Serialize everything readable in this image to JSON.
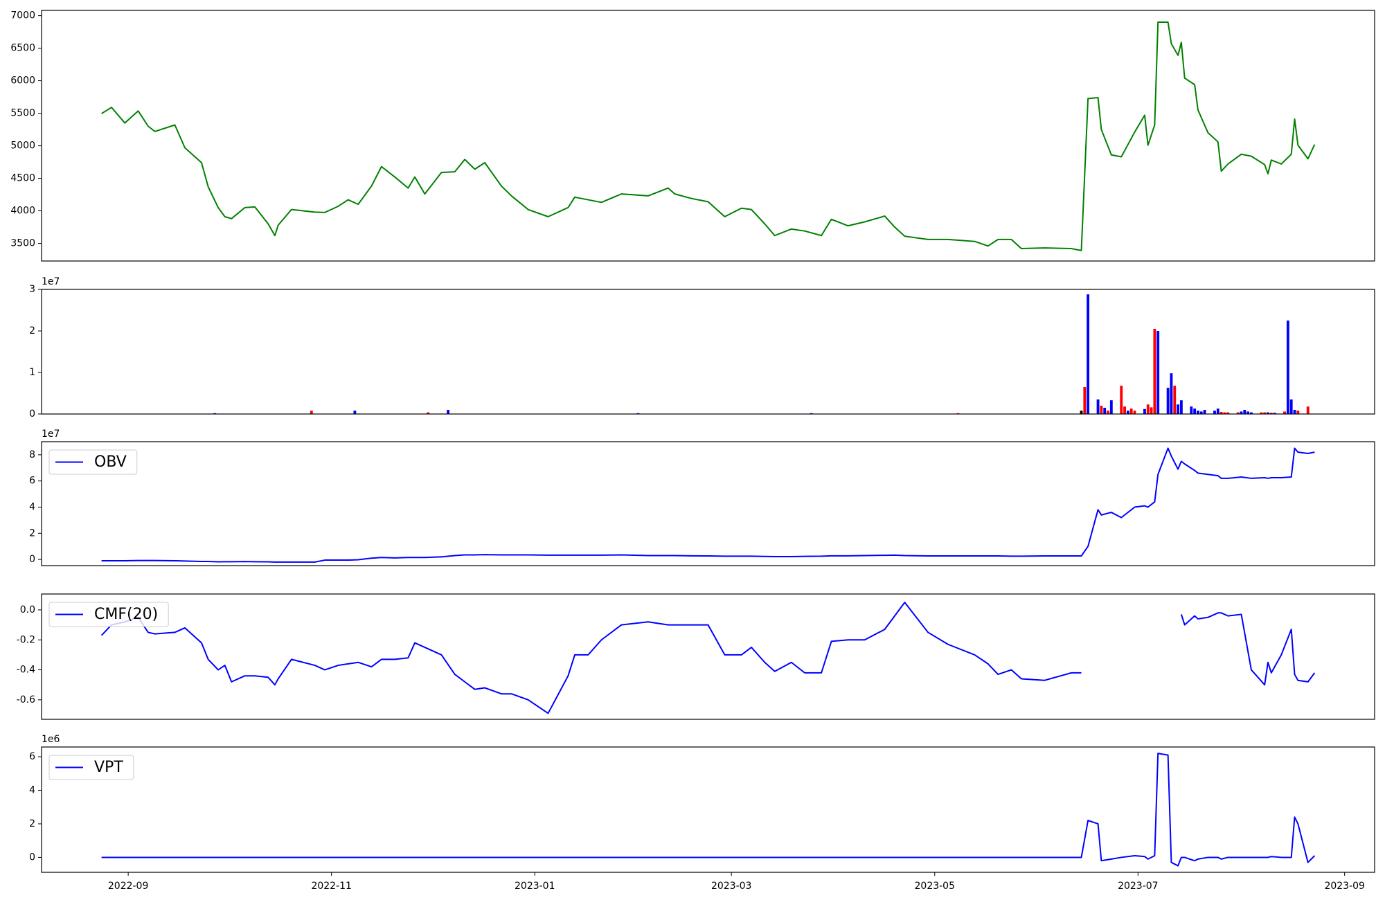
{
  "chart_data": [
    {
      "type": "line",
      "x": [
        19228,
        19231,
        19235,
        19239,
        19242,
        19244,
        19250,
        19253,
        19258,
        19260,
        19263,
        19265,
        19267,
        19271,
        19274,
        19278,
        19280,
        19281,
        19285,
        19292,
        19295,
        19299,
        19302,
        19305,
        19309,
        19312,
        19316,
        19320,
        19322,
        19325,
        19330,
        19334,
        19337,
        19340,
        19343,
        19348,
        19351,
        19356,
        19362,
        19368,
        19370,
        19374,
        19378,
        19384,
        19392,
        19398,
        19400,
        19405,
        19410,
        19415,
        19420,
        19423,
        19427,
        19430,
        19435,
        19439,
        19444,
        19447,
        19452,
        19457,
        19463,
        19466,
        19469,
        19476,
        19482,
        19490,
        19494,
        19497,
        19501,
        19504,
        19511,
        19519,
        19522,
        19524,
        19527,
        19528,
        19531,
        19534,
        19538,
        19541,
        19542,
        19544,
        19545,
        19548,
        19549,
        19551,
        19552,
        19553,
        19556,
        19557,
        19560,
        19563,
        19564,
        19566,
        19570,
        19573,
        19577,
        19578,
        19579,
        19582,
        19585,
        19586,
        19587,
        19590,
        19592
      ],
      "series": [
        {
          "color": "green",
          "values": [
            5495,
            5590,
            5350,
            5535,
            5300,
            5220,
            5320,
            4970,
            4740,
            4370,
            4050,
            3910,
            3880,
            4050,
            4060,
            3800,
            3620,
            3780,
            4020,
            3980,
            3975,
            4070,
            4170,
            4100,
            4380,
            4680,
            4520,
            4350,
            4520,
            4260,
            4590,
            4600,
            4790,
            4640,
            4740,
            4380,
            4230,
            4020,
            3910,
            4050,
            4210,
            4170,
            4130,
            4260,
            4230,
            4350,
            4260,
            4190,
            4140,
            3910,
            4040,
            4020,
            3800,
            3620,
            3720,
            3690,
            3620,
            3870,
            3770,
            3830,
            3920,
            3750,
            3610,
            3560,
            3560,
            3530,
            3460,
            3560,
            3560,
            3420,
            3430,
            3420,
            3390,
            5725,
            5740,
            5250,
            4860,
            4830,
            5210,
            5470,
            5010,
            5320,
            6900,
            6900,
            6570,
            6390,
            6590,
            6040,
            5940,
            5550,
            5200,
            5060,
            4610,
            4720,
            4870,
            4840,
            4710,
            4570,
            4780,
            4720,
            4870,
            5410,
            5010,
            4800,
            5020
          ]
        }
      ],
      "xlim": [
        19210,
        19610
      ],
      "ylim": [
        3229,
        7081
      ],
      "yticks": [
        3500,
        4000,
        4500,
        5000,
        5500,
        6000,
        6500,
        7000
      ]
    },
    {
      "type": "bar",
      "x": [
        19262,
        19291,
        19304,
        19326,
        19332,
        19389,
        19441,
        19485,
        19522,
        19523,
        19524,
        19527,
        19528,
        19529,
        19530,
        19531,
        19534,
        19535,
        19536,
        19537,
        19538,
        19541,
        19542,
        19543,
        19544,
        19545,
        19548,
        19549,
        19550,
        19551,
        19552,
        19555,
        19556,
        19557,
        19558,
        19559,
        19562,
        19563,
        19564,
        19565,
        19566,
        19569,
        19570,
        19571,
        19572,
        19573,
        19576,
        19577,
        19578,
        19579,
        19580,
        19583,
        19584,
        19585,
        19586,
        19587,
        19590
      ],
      "values": [
        0.02,
        0.08,
        0.08,
        0.04,
        0.1,
        0.02,
        0.02,
        0.02,
        0.08,
        0.65,
        2.88,
        0.35,
        0.2,
        0.15,
        0.08,
        0.33,
        0.68,
        0.18,
        0.08,
        0.13,
        0.08,
        0.12,
        0.23,
        0.16,
        2.05,
        2.0,
        0.63,
        0.98,
        0.68,
        0.23,
        0.33,
        0.18,
        0.13,
        0.08,
        0.06,
        0.1,
        0.08,
        0.13,
        0.05,
        0.04,
        0.04,
        0.04,
        0.06,
        0.1,
        0.06,
        0.04,
        0.04,
        0.04,
        0.04,
        0.03,
        0.03,
        0.06,
        2.25,
        0.35,
        0.1,
        0.08,
        0.18
      ],
      "colors": [
        "blue",
        "red",
        "blue",
        "red",
        "blue",
        "blue",
        "blue",
        "red",
        "black",
        "red",
        "blue",
        "blue",
        "red",
        "blue",
        "red",
        "blue",
        "red",
        "red",
        "blue",
        "red",
        "red",
        "blue",
        "red",
        "red",
        "red",
        "blue",
        "blue",
        "blue",
        "red",
        "blue",
        "blue",
        "blue",
        "blue",
        "blue",
        "blue",
        "blue",
        "blue",
        "blue",
        "red",
        "red",
        "red",
        "red",
        "blue",
        "blue",
        "blue",
        "blue",
        "red",
        "red",
        "blue",
        "red",
        "blue",
        "red",
        "blue",
        "blue",
        "blue",
        "red",
        "red"
      ],
      "xlim": [
        19210,
        19610
      ],
      "ylim": [
        0,
        3
      ],
      "yticks": [
        0,
        1,
        2,
        3
      ],
      "offset_label": "1e7"
    },
    {
      "type": "line",
      "x": [
        19228,
        19231,
        19235,
        19239,
        19242,
        19244,
        19250,
        19253,
        19258,
        19260,
        19263,
        19265,
        19267,
        19271,
        19274,
        19278,
        19280,
        19281,
        19285,
        19292,
        19295,
        19299,
        19302,
        19305,
        19309,
        19312,
        19316,
        19320,
        19322,
        19325,
        19330,
        19334,
        19337,
        19340,
        19343,
        19348,
        19351,
        19356,
        19362,
        19368,
        19370,
        19374,
        19378,
        19384,
        19392,
        19398,
        19400,
        19405,
        19410,
        19415,
        19420,
        19423,
        19427,
        19430,
        19435,
        19439,
        19444,
        19447,
        19452,
        19457,
        19463,
        19466,
        19469,
        19476,
        19482,
        19490,
        19494,
        19497,
        19501,
        19504,
        19511,
        19519,
        19522,
        19524,
        19527,
        19528,
        19531,
        19534,
        19538,
        19541,
        19542,
        19544,
        19545,
        19548,
        19549,
        19551,
        19552,
        19553,
        19556,
        19557,
        19560,
        19563,
        19564,
        19566,
        19570,
        19573,
        19577,
        19578,
        19579,
        19582,
        19585,
        19586,
        19587,
        19590,
        19592
      ],
      "series": [
        {
          "name": "OBV",
          "color": "blue",
          "values": [
            -0.1,
            -0.1,
            -0.1,
            -0.08,
            -0.08,
            -0.08,
            -0.1,
            -0.12,
            -0.15,
            -0.15,
            -0.18,
            -0.17,
            -0.17,
            -0.16,
            -0.17,
            -0.18,
            -0.2,
            -0.2,
            -0.2,
            -0.2,
            -0.05,
            -0.05,
            -0.05,
            -0.02,
            0.1,
            0.15,
            0.12,
            0.15,
            0.15,
            0.15,
            0.2,
            0.3,
            0.35,
            0.35,
            0.37,
            0.35,
            0.35,
            0.35,
            0.33,
            0.33,
            0.33,
            0.33,
            0.33,
            0.35,
            0.3,
            0.3,
            0.3,
            0.28,
            0.27,
            0.25,
            0.25,
            0.25,
            0.23,
            0.22,
            0.22,
            0.24,
            0.25,
            0.28,
            0.28,
            0.3,
            0.32,
            0.33,
            0.3,
            0.27,
            0.27,
            0.27,
            0.27,
            0.27,
            0.25,
            0.25,
            0.27,
            0.27,
            0.27,
            1.0,
            3.8,
            3.4,
            3.6,
            3.2,
            4.0,
            4.1,
            4.0,
            4.4,
            6.5,
            8.5,
            7.9,
            6.9,
            7.5,
            7.3,
            6.8,
            6.6,
            6.5,
            6.4,
            6.2,
            6.2,
            6.3,
            6.2,
            6.25,
            6.2,
            6.25,
            6.25,
            6.3,
            8.5,
            8.2,
            8.1,
            8.2
          ]
        }
      ],
      "xlim": [
        19210,
        19610
      ],
      "ylim": [
        -0.47,
        9.0
      ],
      "yticks": [
        0,
        2,
        4,
        6,
        8
      ],
      "offset_label": "1e7",
      "legend": "upper left"
    },
    {
      "type": "line",
      "x": [
        19228,
        19231,
        19235,
        19239,
        19242,
        19244,
        19250,
        19253,
        19258,
        19260,
        19263,
        19265,
        19267,
        19271,
        19274,
        19278,
        19280,
        19281,
        19285,
        19292,
        19295,
        19299,
        19302,
        19305,
        19309,
        19312,
        19316,
        19320,
        19322,
        19325,
        19330,
        19334,
        19337,
        19340,
        19343,
        19348,
        19351,
        19356,
        19362,
        19368,
        19370,
        19374,
        19378,
        19384,
        19392,
        19398,
        19400,
        19405,
        19410,
        19415,
        19420,
        19423,
        19427,
        19430,
        19435,
        19439,
        19444,
        19447,
        19452,
        19457,
        19463,
        19466,
        19469,
        19476,
        19482,
        19490,
        19494,
        19497,
        19501,
        19504,
        19511,
        19519,
        19522,
        19524,
        19527,
        19528,
        19531,
        19534,
        19538,
        19541,
        19542,
        19544,
        19545,
        19548,
        19549,
        19551,
        19552,
        19553,
        19556,
        19557,
        19560,
        19563,
        19564,
        19566,
        19570,
        19573,
        19577,
        19578,
        19579,
        19582,
        19585,
        19586,
        19587,
        19590,
        19592
      ],
      "series": [
        {
          "name": "CMF(20)",
          "color": "blue",
          "values": [
            -0.17,
            -0.1,
            -0.08,
            -0.05,
            -0.15,
            -0.16,
            -0.15,
            -0.12,
            -0.22,
            -0.33,
            -0.4,
            -0.37,
            -0.48,
            -0.44,
            -0.44,
            -0.45,
            -0.5,
            -0.46,
            -0.33,
            -0.37,
            -0.4,
            -0.37,
            -0.36,
            -0.35,
            -0.38,
            -0.33,
            -0.33,
            -0.32,
            -0.22,
            -0.25,
            -0.3,
            -0.43,
            -0.48,
            -0.53,
            -0.52,
            -0.56,
            -0.56,
            -0.6,
            -0.69,
            -0.44,
            -0.3,
            -0.3,
            -0.2,
            -0.1,
            -0.08,
            -0.1,
            -0.1,
            -0.1,
            -0.1,
            -0.3,
            -0.3,
            -0.25,
            -0.35,
            -0.41,
            -0.35,
            -0.42,
            -0.42,
            -0.21,
            -0.2,
            -0.2,
            -0.13,
            -0.04,
            0.05,
            -0.15,
            -0.23,
            -0.3,
            -0.36,
            -0.43,
            -0.4,
            -0.46,
            -0.47,
            -0.42,
            -0.42,
            null,
            null,
            null,
            null,
            null,
            null,
            null,
            null,
            null,
            null,
            null,
            null,
            null,
            -0.03,
            -0.1,
            -0.04,
            -0.06,
            -0.05,
            -0.02,
            -0.02,
            -0.04,
            -0.03,
            -0.4,
            -0.5,
            -0.35,
            -0.42,
            -0.3,
            -0.13,
            -0.43,
            -0.47,
            -0.48,
            -0.42
          ]
        }
      ],
      "xlim": [
        19210,
        19610
      ],
      "ylim": [
        -0.73,
        0.106
      ],
      "yticks": [
        -0.6,
        -0.4,
        -0.2,
        {
          "value": 0,
          "label": "0.0"
        }
      ],
      "legend": "upper left"
    },
    {
      "type": "line",
      "x": [
        19228,
        19231,
        19235,
        19239,
        19242,
        19244,
        19250,
        19253,
        19258,
        19260,
        19263,
        19265,
        19267,
        19271,
        19274,
        19278,
        19280,
        19281,
        19285,
        19292,
        19295,
        19299,
        19302,
        19305,
        19309,
        19312,
        19316,
        19320,
        19322,
        19325,
        19330,
        19334,
        19337,
        19340,
        19343,
        19348,
        19351,
        19356,
        19362,
        19368,
        19370,
        19374,
        19378,
        19384,
        19392,
        19398,
        19400,
        19405,
        19410,
        19415,
        19420,
        19423,
        19427,
        19430,
        19435,
        19439,
        19444,
        19447,
        19452,
        19457,
        19463,
        19466,
        19469,
        19476,
        19482,
        19490,
        19494,
        19497,
        19501,
        19504,
        19511,
        19519,
        19522,
        19524,
        19527,
        19528,
        19531,
        19534,
        19538,
        19541,
        19542,
        19544,
        19545,
        19548,
        19549,
        19551,
        19552,
        19553,
        19556,
        19557,
        19560,
        19563,
        19564,
        19566,
        19570,
        19573,
        19577,
        19578,
        19579,
        19582,
        19585,
        19586,
        19587,
        19590,
        19592
      ],
      "series": [
        {
          "name": "VPT",
          "color": "blue",
          "values": [
            0,
            0,
            0,
            0,
            0,
            0,
            0,
            0,
            0,
            0,
            0,
            0,
            0,
            0,
            0,
            0,
            0,
            0,
            0,
            0,
            0,
            0,
            0,
            0,
            0,
            0,
            0,
            0,
            0,
            0,
            0,
            0,
            0,
            0,
            0,
            0,
            0,
            0,
            0,
            0,
            0,
            0,
            0,
            0,
            0,
            0,
            0,
            0,
            0,
            0,
            0,
            0,
            0,
            0,
            0,
            0,
            0,
            0,
            0,
            0,
            0,
            0,
            0,
            0,
            0,
            0,
            0,
            0,
            0,
            0,
            0,
            0,
            0,
            2.2,
            2.0,
            -0.2,
            -0.1,
            0.0,
            0.1,
            0.05,
            -0.1,
            0.1,
            6.2,
            6.1,
            -0.3,
            -0.5,
            0.0,
            0.0,
            -0.2,
            -0.1,
            0.0,
            0.0,
            -0.1,
            0.0,
            0.0,
            0.0,
            0.0,
            0.0,
            0.05,
            0.0,
            0.0,
            2.4,
            2.0,
            -0.3,
            0.1
          ]
        }
      ],
      "xlim": [
        19210,
        19610
      ],
      "ylim": [
        -0.89,
        6.58
      ],
      "yticks": [
        0,
        2,
        4,
        6
      ],
      "offset_label": "1e6",
      "legend": "upper left",
      "xticks": [
        {
          "value": 19236,
          "label": "2022-09"
        },
        {
          "value": 19297,
          "label": "2022-11"
        },
        {
          "value": 19358,
          "label": "2023-01"
        },
        {
          "value": 19417,
          "label": "2023-03"
        },
        {
          "value": 19478,
          "label": "2023-05"
        },
        {
          "value": 19539,
          "label": "2023-07"
        },
        {
          "value": 19601,
          "label": "2023-09"
        }
      ]
    }
  ]
}
